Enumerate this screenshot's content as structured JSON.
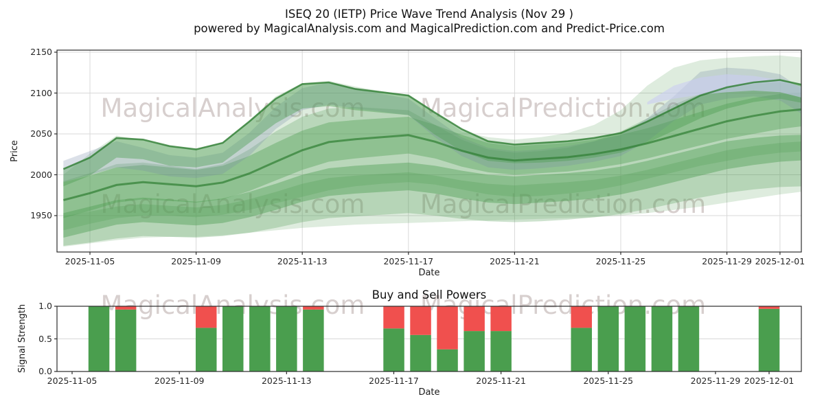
{
  "header": {
    "title_line1": "ISEQ 20 (IETP) Price Wave Trend Analysis (Nov 29 )",
    "title_line2": "powered by MagicalAnalysis.com and MagicalPrediction.com and Predict-Price.com"
  },
  "watermarks": {
    "left_text": "MagicalAnalysis.com",
    "right_text": "MagicalPrediction.com"
  },
  "colors": {
    "band_green": "#58a05c",
    "band_green_dark": "#4c9e50",
    "trend_line_green": "#2e7d32",
    "slate_band": "#7288a8",
    "periwinkle_band": "#c9cdf1",
    "buy_green": "#4a9e4e",
    "sell_red": "#f0504e",
    "grid": "#d8d8d8",
    "spine": "#2b2b2b"
  },
  "chart_data": [
    {
      "type": "area",
      "name": "price-wave-chart",
      "title": "ISEQ 20 (IETP) Price Wave Trend Analysis (Nov 29 )",
      "xlabel": "Date",
      "ylabel": "Price",
      "ylim": [
        1905,
        2152
      ],
      "yticks": [
        1950,
        2000,
        2050,
        2100,
        2150
      ],
      "xtick_labels": [
        "2025-11-05",
        "2025-11-09",
        "2025-11-13",
        "2025-11-17",
        "2025-11-21",
        "2025-11-25",
        "2025-11-29",
        "2025-12-01"
      ],
      "grid": true,
      "legend": "none",
      "base_date": "2025-11-05",
      "days": [
        -1,
        0,
        1,
        2,
        3,
        4,
        5,
        6,
        7,
        8,
        9,
        10,
        11,
        12,
        13,
        14,
        15,
        16,
        17,
        18,
        19,
        20,
        21,
        22,
        23,
        24,
        25,
        26,
        27
      ],
      "bands": [
        {
          "name": "outer-envelope",
          "color": "#58a05c",
          "opacity": 0.2,
          "lo": [
            1912,
            1916,
            1920,
            1923,
            1924,
            1924,
            1926,
            1929,
            1932,
            1935,
            1937,
            1939,
            1940,
            1941,
            1942,
            1943,
            1944,
            1945,
            1946,
            1947,
            1948,
            1950,
            1953,
            1957,
            1961,
            1966,
            1971,
            1976,
            1980
          ],
          "hi": [
            2000,
            2026,
            2048,
            2042,
            2035,
            2032,
            2040,
            2066,
            2096,
            2112,
            2115,
            2108,
            2102,
            2098,
            2076,
            2053,
            2046,
            2043,
            2046,
            2051,
            2061,
            2079,
            2109,
            2131,
            2140,
            2143,
            2145,
            2146,
            2143
          ]
        },
        {
          "name": "wide-mid-band",
          "color": "#58a05c",
          "opacity": 0.28,
          "lo": [
            1932,
            1940,
            1947,
            1950,
            1950,
            1948,
            1951,
            1957,
            1965,
            1973,
            1981,
            1986,
            1989,
            1991,
            1988,
            1982,
            1976,
            1973,
            1974,
            1977,
            1981,
            1987,
            1995,
            2003,
            2011,
            2017,
            2023,
            2027,
            2029
          ],
          "hi": [
            1992,
            2002,
            2013,
            2015,
            2011,
            2007,
            2013,
            2031,
            2053,
            2071,
            2081,
            2083,
            2081,
            2079,
            2061,
            2043,
            2031,
            2027,
            2029,
            2033,
            2041,
            2053,
            2069,
            2086,
            2099,
            2106,
            2111,
            2113,
            2109
          ]
        },
        {
          "name": "bottom-light-band",
          "color": "#58a05c",
          "opacity": 0.3,
          "lo": [
            1913,
            1917,
            1922,
            1925,
            1924,
            1923,
            1925,
            1929,
            1935,
            1942,
            1947,
            1949,
            1951,
            1953,
            1950,
            1946,
            1943,
            1942,
            1943,
            1945,
            1948,
            1952,
            1958,
            1965,
            1972,
            1978,
            1982,
            1985,
            1986
          ],
          "hi": [
            1949,
            1955,
            1961,
            1964,
            1962,
            1960,
            1963,
            1970,
            1979,
            1989,
            1996,
            1999,
            2001,
            2003,
            1999,
            1993,
            1989,
            1987,
            1989,
            1991,
            1994,
            1999,
            2006,
            2014,
            2022,
            2030,
            2035,
            2039,
            2041
          ]
        },
        {
          "name": "low-band",
          "color": "#4c9e50",
          "opacity": 0.42,
          "lo": [
            1923,
            1931,
            1939,
            1942,
            1940,
            1938,
            1941,
            1948,
            1957,
            1967,
            1974,
            1977,
            1979,
            1981,
            1977,
            1971,
            1966,
            1964,
            1966,
            1968,
            1971,
            1976,
            1983,
            1991,
            1999,
            2007,
            2012,
            2016,
            2018
          ],
          "hi": [
            1953,
            1961,
            1969,
            1972,
            1970,
            1967,
            1971,
            1979,
            1989,
            2000,
            2008,
            2011,
            2013,
            2015,
            2011,
            2005,
            2000,
            1998,
            2000,
            2002,
            2005,
            2010,
            2017,
            2025,
            2033,
            2041,
            2045,
            2048,
            2049
          ]
        },
        {
          "name": "mid-band",
          "color": "#4c9e50",
          "opacity": 0.38,
          "centerLine": true,
          "lo": [
            1947,
            1956,
            1966,
            1970,
            1968,
            1966,
            1970,
            1980,
            1993,
            2006,
            2016,
            2020,
            2023,
            2026,
            2020,
            2010,
            2003,
            2000,
            2002,
            2004,
            2008,
            2013,
            2020,
            2028,
            2036,
            2044,
            2050,
            2056,
            2060
          ],
          "hi": [
            1991,
            1999,
            2009,
            2012,
            2009,
            2006,
            2011,
            2023,
            2039,
            2054,
            2064,
            2067,
            2069,
            2071,
            2061,
            2049,
            2039,
            2035,
            2037,
            2039,
            2043,
            2049,
            2057,
            2067,
            2077,
            2087,
            2094,
            2099,
            2101
          ]
        },
        {
          "name": "slate-band",
          "color": "#7288a8",
          "opacity": 0.26,
          "lo": [
            1991,
            2000,
            2009,
            2005,
            1998,
            1996,
            2001,
            2023,
            2056,
            2079,
            2086,
            2081,
            2077,
            2073,
            2046,
            2023,
            2009,
            2006,
            2008,
            2011,
            2016,
            2023,
            2041,
            2066,
            2086,
            2093,
            2096,
            2091,
            2071
          ],
          "hi": [
            2017,
            2029,
            2041,
            2033,
            2024,
            2021,
            2027,
            2051,
            2083,
            2106,
            2113,
            2106,
            2099,
            2093,
            2069,
            2046,
            2033,
            2029,
            2031,
            2035,
            2041,
            2049,
            2069,
            2096,
            2126,
            2131,
            2129,
            2123,
            2101
          ]
        },
        {
          "name": "upper-band",
          "color": "#4c9e50",
          "opacity": 0.42,
          "topLine": true,
          "lo": [
            1986,
            1999,
            2021,
            2019,
            2011,
            2009,
            2015,
            2039,
            2063,
            2081,
            2084,
            2079,
            2076,
            2073,
            2049,
            2029,
            2017,
            2014,
            2015,
            2017,
            2021,
            2027,
            2039,
            2054,
            2069,
            2081,
            2089,
            2093,
            2087
          ],
          "hi": [
            2007,
            2021,
            2045,
            2043,
            2035,
            2031,
            2039,
            2065,
            2093,
            2111,
            2113,
            2105,
            2101,
            2097,
            2076,
            2056,
            2041,
            2037,
            2039,
            2041,
            2045,
            2051,
            2065,
            2081,
            2097,
            2107,
            2113,
            2116,
            2109
          ]
        },
        {
          "name": "periwinkle-band",
          "color": "#c9cdf1",
          "opacity": 0.6,
          "days": [
            21,
            22,
            23,
            24,
            25,
            26,
            27
          ],
          "lo": [
            2086,
            2093,
            2098,
            2101,
            2103,
            2101,
            2093
          ],
          "hi": [
            2089,
            2109,
            2119,
            2123,
            2121,
            2116,
            2106
          ]
        }
      ],
      "trend_line_color": "#2e7d32"
    },
    {
      "type": "bar",
      "name": "buy-sell-powers-chart",
      "title": "Buy and Sell Powers",
      "xlabel": "Date",
      "ylabel": "Signal Strength",
      "ylim": [
        0,
        1.0
      ],
      "yticks": [
        "0.0",
        "0.5",
        "1.0"
      ],
      "xtick_labels": [
        "2025-11-05",
        "2025-11-09",
        "2025-11-13",
        "2025-11-17",
        "2025-11-21",
        "2025-11-25",
        "2025-11-29",
        "2025-12-01"
      ],
      "grid": true,
      "legend": "none",
      "base_date": "2025-11-05",
      "stacked": true,
      "bar_width_days": 0.78,
      "categories": [
        "2025-11-06",
        "2025-11-07",
        "2025-11-10",
        "2025-11-11",
        "2025-11-12",
        "2025-11-13",
        "2025-11-14",
        "2025-11-17",
        "2025-11-18",
        "2025-11-19",
        "2025-11-20",
        "2025-11-21",
        "2025-11-24",
        "2025-11-25",
        "2025-11-26",
        "2025-11-27",
        "2025-11-28",
        "2025-12-01"
      ],
      "series": [
        {
          "name": "Buy",
          "color": "#4a9e4e",
          "values": [
            1.0,
            0.95,
            0.67,
            1.0,
            1.0,
            1.0,
            0.95,
            0.66,
            0.56,
            0.34,
            0.62,
            0.62,
            0.67,
            1.0,
            1.0,
            1.0,
            1.0,
            0.96
          ]
        },
        {
          "name": "Sell",
          "color": "#f0504e",
          "values": [
            0.0,
            0.05,
            0.33,
            0.0,
            0.0,
            0.0,
            0.05,
            0.34,
            0.44,
            0.66,
            0.38,
            0.38,
            0.33,
            0.0,
            0.0,
            0.0,
            0.0,
            0.04
          ]
        }
      ]
    }
  ]
}
